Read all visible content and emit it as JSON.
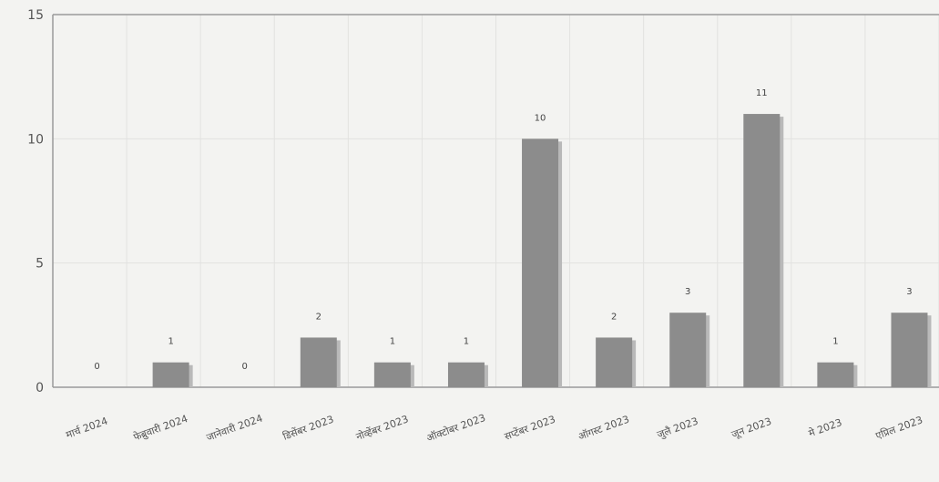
{
  "chart_data": {
    "type": "bar",
    "title": "",
    "xlabel": "",
    "ylabel": "",
    "ylim": [
      0,
      15
    ],
    "yticks": [
      "0",
      "5",
      "10",
      "15"
    ],
    "grid": true,
    "legend": "none",
    "categories": [
      "मार्च 2024",
      "फेब्रुवारी 2024",
      "जानेवारी 2024",
      "डिसेंबर 2023",
      "नोव्हेंबर 2023",
      "ऑक्टोबर 2023",
      "सप्टेंबर 2023",
      "ऑगस्ट 2023",
      "जुलै 2023",
      "जून 2023",
      "मे 2023",
      "एप्रिल 2023"
    ],
    "values": [
      0,
      1,
      0,
      2,
      1,
      1,
      10,
      2,
      3,
      11,
      1,
      3
    ],
    "colors": {
      "bar": "#8c8c8c",
      "bar_shadow": "#b9b9b9",
      "grid": "#e2e2e0",
      "axis": "#9a9a9a",
      "background": "#f3f3f1"
    }
  }
}
